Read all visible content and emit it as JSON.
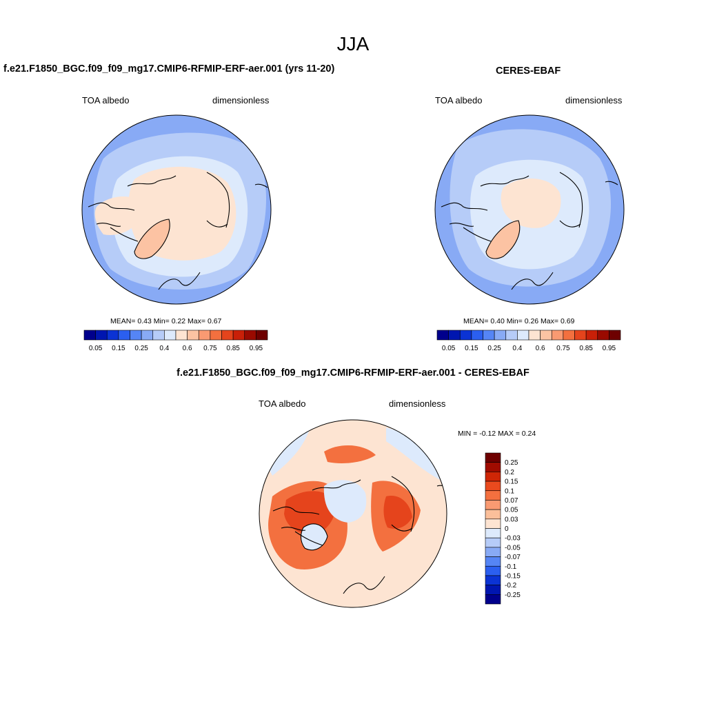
{
  "main_title": "JJA",
  "panels": {
    "model": {
      "title": "f.e21.F1850_BGC.f09_f09_mg17.CMIP6-RFMIP-ERF-aer.001 (yrs 11-20)",
      "left_label": "TOA albedo",
      "right_label": "dimensionless",
      "stats": "MEAN=   0.43  Min=    0.22  Max=    0.67",
      "mean": 0.43,
      "min": 0.22,
      "max": 0.67
    },
    "obs": {
      "title": "CERES-EBAF",
      "left_label": "TOA albedo",
      "right_label": "dimensionless",
      "stats": "MEAN=   0.40  Min=    0.26  Max=    0.69",
      "mean": 0.4,
      "min": 0.26,
      "max": 0.69
    },
    "diff": {
      "title": "f.e21.F1850_BGC.f09_f09_mg17.CMIP6-RFMIP-ERF-aer.001 - CERES-EBAF",
      "left_label": "TOA albedo",
      "right_label": "dimensionless",
      "stats": "MIN =  -0.12 MAX =   0.24",
      "min": -0.12,
      "max": 0.24
    }
  },
  "colorbar_abs": {
    "tick_labels": [
      "0.05",
      "0.15",
      "0.25",
      "0.4",
      "0.6",
      "0.75",
      "0.85",
      "0.95"
    ],
    "colors": [
      "#00008c",
      "#0016b0",
      "#0b33d4",
      "#2b5ff0",
      "#5585f5",
      "#88aaf5",
      "#b6ccf8",
      "#ddeafc",
      "#fde4d2",
      "#fcc3a3",
      "#f99a72",
      "#f3703f",
      "#e5441c",
      "#c92008",
      "#9a0a00",
      "#6e0000"
    ]
  },
  "colorbar_diff": {
    "tick_labels": [
      "0.25",
      "0.2",
      "0.15",
      "0.1",
      "0.07",
      "0.05",
      "0.03",
      "0",
      "-0.03",
      "-0.05",
      "-0.07",
      "-0.1",
      "-0.15",
      "-0.2",
      "-0.25"
    ],
    "colors": [
      "#6e0000",
      "#a00c00",
      "#cf2606",
      "#ea4a1e",
      "#f4703f",
      "#f99a72",
      "#fbbf9a",
      "#fde4d2",
      "#ddeafc",
      "#b6ccf8",
      "#88aaf5",
      "#5585f5",
      "#2b5ff0",
      "#0b33d4",
      "#0016b0",
      "#00008c"
    ]
  },
  "map_colors": {
    "ocean_low": "#b6ccf8",
    "ocean_mid": "#88aaf5",
    "ice_light": "#ddeafc",
    "arctic_high": "#fde4d2",
    "greenland": "#fcc3a3",
    "diff_neutral": "#fde4d2",
    "diff_warm": "#f3703f",
    "diff_hot": "#e5441c",
    "diff_cool": "#ddeafc",
    "coast": "#000000"
  }
}
